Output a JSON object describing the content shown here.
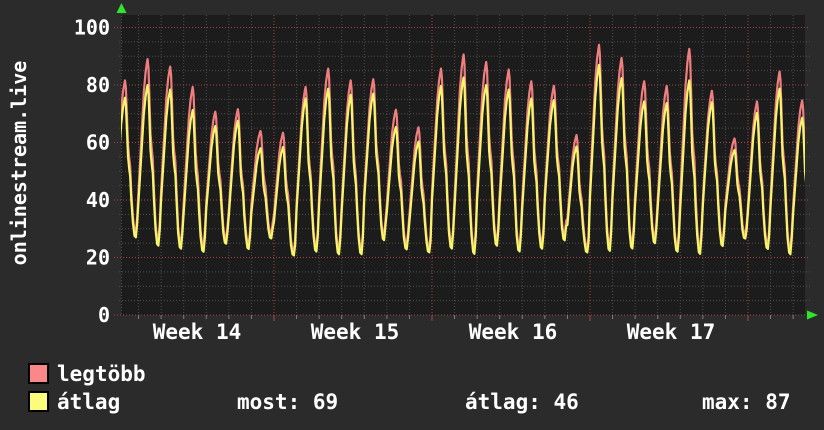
{
  "app": {
    "background": "#2b2b2b",
    "plot_background": "#1c1c1c",
    "text_color": "#ffffff"
  },
  "vertical_title": "onlinestream.live",
  "chart_data": {
    "type": "line",
    "title": "onlinestream.live",
    "ylim": [
      0,
      100
    ],
    "ytick_values": [
      0,
      20,
      40,
      60,
      80,
      100
    ],
    "ytick_labels": [
      "0",
      "20",
      "40",
      "60",
      "80",
      "100"
    ],
    "xtick_labels": [
      "Week 14",
      "Week 15",
      "Week 16",
      "Week 17"
    ],
    "x_unit": "days",
    "days_per_week": 7,
    "grid": {
      "minor_color": "#4e4e4e",
      "major_color": "#a04848",
      "minor_y_step": 5,
      "major_y_step": 20,
      "minor_x_step_days": 1,
      "major_x_step_days": 7
    },
    "axis_arrow_color": "#2de62d",
    "series": [
      {
        "name": "legtöbb",
        "color": "#ef7f7f",
        "role": "daily maximum"
      },
      {
        "name": "átlag",
        "color": "#f6f66c",
        "role": "daily average"
      }
    ],
    "days": [
      {
        "max": 83,
        "avg": 77,
        "low": 26
      },
      {
        "max": 89,
        "avg": 80,
        "low": 23
      },
      {
        "max": 85,
        "avg": 77,
        "low": 22
      },
      {
        "max": 80,
        "avg": 72,
        "low": 21
      },
      {
        "max": 70,
        "avg": 65,
        "low": 24
      },
      {
        "max": 73,
        "avg": 69,
        "low": 22
      },
      {
        "max": 64,
        "avg": 58,
        "low": 26
      },
      {
        "max": 62,
        "avg": 57,
        "low": 20
      },
      {
        "max": 80,
        "avg": 76,
        "low": 21
      },
      {
        "max": 85,
        "avg": 78,
        "low": 20
      },
      {
        "max": 83,
        "avg": 78,
        "low": 20
      },
      {
        "max": 82,
        "avg": 77,
        "low": 25
      },
      {
        "max": 70,
        "avg": 64,
        "low": 22
      },
      {
        "max": 66,
        "avg": 61,
        "low": 21
      },
      {
        "max": 85,
        "avg": 79,
        "low": 22
      },
      {
        "max": 92,
        "avg": 84,
        "low": 20
      },
      {
        "max": 88,
        "avg": 80,
        "low": 23
      },
      {
        "max": 84,
        "avg": 77,
        "low": 21
      },
      {
        "max": 82,
        "avg": 76,
        "low": 22
      },
      {
        "max": 79,
        "avg": 74,
        "low": 25
      },
      {
        "max": 64,
        "avg": 60,
        "low": 21
      },
      {
        "max": 94,
        "avg": 87,
        "low": 21
      },
      {
        "max": 88,
        "avg": 81,
        "low": 22
      },
      {
        "max": 82,
        "avg": 75,
        "low": 24
      },
      {
        "max": 79,
        "avg": 73,
        "low": 21
      },
      {
        "max": 94,
        "avg": 83,
        "low": 20
      },
      {
        "max": 78,
        "avg": 74,
        "low": 23
      },
      {
        "max": 60,
        "avg": 56,
        "low": 26
      },
      {
        "max": 75,
        "avg": 71,
        "low": 22
      },
      {
        "max": 84,
        "avg": 78,
        "low": 20
      },
      {
        "max": 76,
        "avg": 70,
        "low": 22
      }
    ],
    "stats": [
      {
        "label": "most",
        "value": 69,
        "text": "most: 69"
      },
      {
        "label": "átlag",
        "value": 46,
        "text": "átlag: 46"
      },
      {
        "label": "max",
        "value": 87,
        "text": "max: 87"
      }
    ]
  },
  "legend": {
    "items": [
      {
        "label": "legtöbb",
        "color": "#fb8888"
      },
      {
        "label": "átlag",
        "color": "#fcfc7c"
      }
    ]
  }
}
